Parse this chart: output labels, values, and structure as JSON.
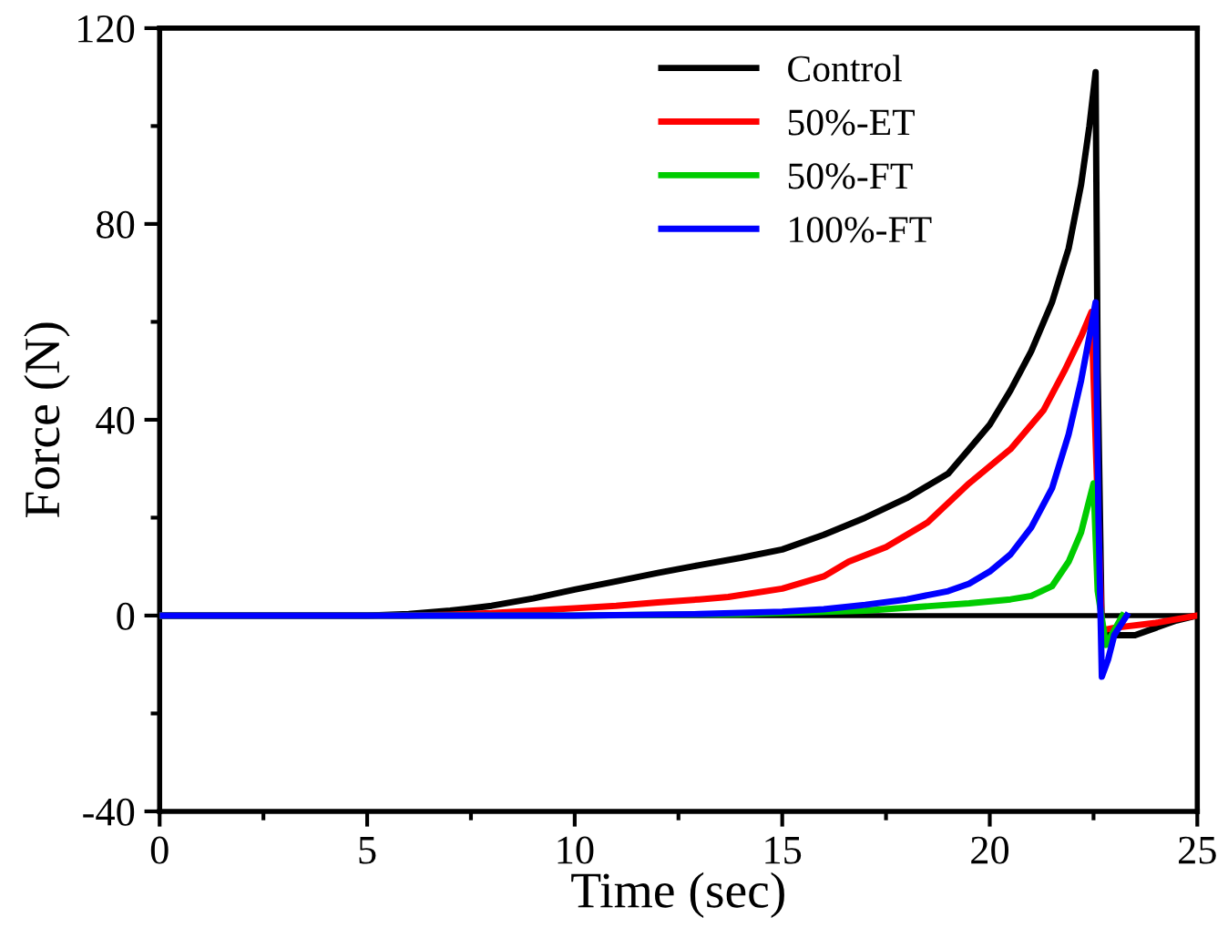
{
  "chart_data": {
    "type": "line",
    "xlabel": "Time (sec)",
    "ylabel": "Force (N)",
    "xlim": [
      0,
      25
    ],
    "ylim": [
      -40,
      120
    ],
    "xticks": [
      0,
      {
        "value": 2.5,
        "label": null
      },
      5,
      {
        "value": 7.5,
        "label": null
      },
      10,
      {
        "value": 12.5,
        "label": null
      },
      15,
      {
        "value": 17.5,
        "label": null
      },
      20,
      {
        "value": 22.5,
        "label": null
      },
      25
    ],
    "yticks": [
      -40,
      {
        "value": -20,
        "label": null
      },
      0,
      {
        "value": 20,
        "label": null
      },
      40,
      {
        "value": 60,
        "label": null
      },
      80,
      {
        "value": 100,
        "label": null
      },
      120
    ],
    "grid": false,
    "legend": "top right",
    "marker": "none",
    "line_style": "solid",
    "ref_lines": [
      {
        "axis": "y",
        "value": 0,
        "color": "#000000"
      }
    ],
    "series": [
      {
        "name": "Control",
        "color": "#000000",
        "x": [
          0,
          5,
          6,
          7,
          8,
          9,
          10,
          11,
          12,
          13,
          14,
          15,
          16,
          17,
          18,
          19,
          19.5,
          20,
          20.5,
          21,
          21.5,
          21.9,
          22.2,
          22.4,
          22.55,
          22.6,
          22.7,
          23,
          23.5,
          24,
          24.5,
          25
        ],
        "values": [
          0,
          0,
          0.3,
          1,
          2,
          3.5,
          5.3,
          7,
          8.7,
          10.3,
          11.8,
          13.5,
          16.5,
          20,
          24,
          29,
          34,
          39,
          46,
          54,
          64,
          75,
          88,
          100,
          111,
          50,
          -4,
          -4,
          -4,
          -2.5,
          -1,
          0
        ]
      },
      {
        "name": "50%-ET",
        "color": "#ff0000",
        "x": [
          0,
          6,
          7,
          8,
          9,
          10,
          11,
          12,
          13,
          13.7,
          15,
          16,
          16.6,
          17.5,
          18.5,
          19.5,
          20.5,
          21.3,
          21.8,
          22.2,
          22.45,
          22.7,
          23,
          24,
          25
        ],
        "values": [
          0,
          0,
          0.2,
          0.5,
          1,
          1.5,
          2,
          2.7,
          3.3,
          3.8,
          5.5,
          8,
          11,
          14,
          19,
          27,
          34,
          42,
          50,
          57,
          62,
          -3,
          -2.5,
          -1.5,
          0
        ]
      },
      {
        "name": "50%-FT",
        "color": "#00cc00",
        "x": [
          0,
          10,
          14,
          17,
          19.5,
          20.5,
          21,
          21.5,
          21.9,
          22.2,
          22.5,
          22.6,
          22.8,
          23,
          23.2
        ],
        "values": [
          0,
          0,
          0.3,
          1,
          2.5,
          3.3,
          4,
          6,
          11,
          17,
          27,
          5,
          -6,
          -3,
          0
        ]
      },
      {
        "name": "100%-FT",
        "color": "#0000ff",
        "x": [
          0,
          10,
          13,
          15,
          16,
          17,
          18,
          19,
          19.5,
          20,
          20.5,
          21,
          21.5,
          21.9,
          22.2,
          22.4,
          22.55,
          22.62,
          22.7,
          22.85,
          23,
          23.3
        ],
        "values": [
          0,
          0,
          0.3,
          0.8,
          1.3,
          2.2,
          3.3,
          5,
          6.5,
          9,
          12.5,
          18,
          26,
          37,
          48,
          57,
          64,
          20,
          -12.5,
          -9,
          -4,
          0
        ]
      }
    ]
  }
}
